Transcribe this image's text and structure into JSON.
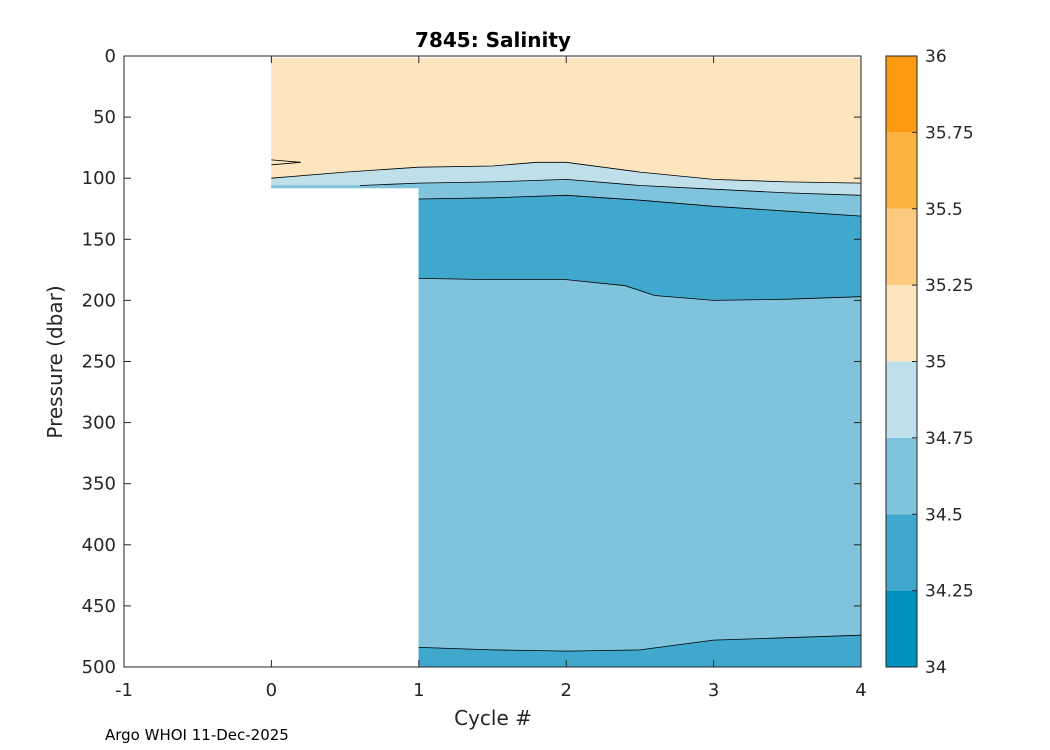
{
  "chart_data": {
    "type": "contour",
    "title": "7845:  Salinity",
    "xlabel": "Cycle #",
    "ylabel": "Pressure (dbar)",
    "xlim": [
      -1,
      4
    ],
    "ylim": [
      0,
      500
    ],
    "y_reversed": true,
    "x_ticks": [
      "-1",
      "0",
      "1",
      "2",
      "3",
      "4"
    ],
    "y_ticks": [
      "0",
      "50",
      "100",
      "150",
      "200",
      "250",
      "300",
      "350",
      "400",
      "450",
      "500"
    ],
    "colorbar": {
      "levels": [
        34,
        34.25,
        34.5,
        34.75,
        35,
        35.25,
        35.5,
        35.75,
        36
      ],
      "tick_labels": [
        "34",
        "34.25",
        "34.5",
        "34.75",
        "35",
        "35.25",
        "35.5",
        "35.75",
        "36"
      ],
      "colors": [
        "#0090bf",
        "#40a8cc",
        "#7fc3dd",
        "#bfe0eb",
        "#fde5bf",
        "#fccb7f",
        "#fcb240",
        "#fc9a11"
      ]
    },
    "bands": [
      {
        "range": [
          35,
          35.25
        ],
        "color": "#fde5bf",
        "top": [
          [
            0,
            2
          ],
          [
            4,
            2
          ]
        ],
        "bottom": [
          [
            0,
            100
          ],
          [
            0.5,
            95
          ],
          [
            1,
            91
          ],
          [
            1.5,
            90
          ],
          [
            1.8,
            87
          ],
          [
            2,
            87
          ],
          [
            2.5,
            95
          ],
          [
            3,
            101
          ],
          [
            3.5,
            103
          ],
          [
            4,
            104
          ]
        ]
      },
      {
        "range": [
          34.75,
          35
        ],
        "color": "#bfe0eb",
        "top": [
          [
            0,
            100
          ],
          [
            0.5,
            95
          ],
          [
            1,
            91
          ],
          [
            1.5,
            90
          ],
          [
            1.8,
            87
          ],
          [
            2,
            87
          ],
          [
            2.5,
            95
          ],
          [
            3,
            101
          ],
          [
            3.5,
            103
          ],
          [
            4,
            104
          ]
        ],
        "bottom": [
          [
            0,
            106
          ],
          [
            0.6,
            106
          ],
          [
            0.8,
            105
          ],
          [
            1,
            104
          ],
          [
            1.5,
            103
          ],
          [
            2,
            101
          ],
          [
            2.5,
            106
          ],
          [
            3,
            109
          ],
          [
            3.5,
            112
          ],
          [
            4,
            114
          ]
        ]
      },
      {
        "range": [
          34.5,
          34.75
        ],
        "color": "#7fc3dd",
        "top": [
          [
            0,
            106
          ],
          [
            0.6,
            106
          ],
          [
            0.8,
            105
          ],
          [
            1,
            104
          ],
          [
            1.5,
            103
          ],
          [
            2,
            101
          ],
          [
            2.5,
            106
          ],
          [
            3,
            109
          ],
          [
            3.5,
            112
          ],
          [
            4,
            114
          ]
        ],
        "bottom": [
          [
            0,
            108
          ],
          [
            1,
            108
          ],
          [
            1,
            117
          ],
          [
            1.5,
            116
          ],
          [
            2,
            114
          ],
          [
            2.5,
            118
          ],
          [
            3,
            123
          ],
          [
            3.5,
            127
          ],
          [
            4,
            131
          ]
        ]
      },
      {
        "range": [
          34.25,
          34.5
        ],
        "color": "#40a8cc",
        "top": [
          [
            1,
            117
          ],
          [
            1.5,
            116
          ],
          [
            2,
            114
          ],
          [
            2.5,
            118
          ],
          [
            3,
            123
          ],
          [
            3.5,
            127
          ],
          [
            4,
            131
          ]
        ],
        "bottom": [
          [
            1,
            182
          ],
          [
            1.5,
            183
          ],
          [
            2,
            183
          ],
          [
            2.4,
            188
          ],
          [
            2.6,
            196
          ],
          [
            3,
            200
          ],
          [
            3.5,
            199
          ],
          [
            4,
            197
          ]
        ]
      },
      {
        "range": [
          34.5,
          34.75
        ],
        "color": "#7fc3dd",
        "top": [
          [
            1,
            182
          ],
          [
            1.5,
            183
          ],
          [
            2,
            183
          ],
          [
            2.4,
            188
          ],
          [
            2.6,
            196
          ],
          [
            3,
            200
          ],
          [
            3.5,
            199
          ],
          [
            4,
            197
          ]
        ],
        "bottom": [
          [
            1,
            484
          ],
          [
            1.5,
            486
          ],
          [
            2,
            487
          ],
          [
            2.5,
            486
          ],
          [
            3,
            478
          ],
          [
            3.5,
            476
          ],
          [
            4,
            474
          ]
        ]
      },
      {
        "range": [
          34.25,
          34.5
        ],
        "color": "#40a8cc",
        "top": [
          [
            1,
            484
          ],
          [
            1.5,
            486
          ],
          [
            2,
            487
          ],
          [
            2.5,
            486
          ],
          [
            3,
            478
          ],
          [
            3.5,
            476
          ],
          [
            4,
            474
          ]
        ],
        "bottom": [
          [
            1,
            500
          ],
          [
            4,
            500
          ]
        ]
      }
    ],
    "contour_lines": [
      [
        [
          0,
          100
        ],
        [
          0.5,
          95
        ],
        [
          1,
          91
        ],
        [
          1.5,
          90
        ],
        [
          1.8,
          87
        ],
        [
          2,
          87
        ],
        [
          2.5,
          95
        ],
        [
          3,
          101
        ],
        [
          3.5,
          103
        ],
        [
          4,
          104
        ]
      ],
      [
        [
          0.6,
          106
        ],
        [
          0.8,
          105
        ],
        [
          1,
          104
        ],
        [
          1.5,
          103
        ],
        [
          2,
          101
        ],
        [
          2.5,
          106
        ],
        [
          3,
          109
        ],
        [
          3.5,
          112
        ],
        [
          4,
          114
        ]
      ],
      [
        [
          1,
          117
        ],
        [
          1.5,
          116
        ],
        [
          2,
          114
        ],
        [
          2.5,
          118
        ],
        [
          3,
          123
        ],
        [
          3.5,
          127
        ],
        [
          4,
          131
        ]
      ],
      [
        [
          1,
          182
        ],
        [
          1.5,
          183
        ],
        [
          2,
          183
        ],
        [
          2.4,
          188
        ],
        [
          2.6,
          196
        ],
        [
          3,
          200
        ],
        [
          3.5,
          199
        ],
        [
          4,
          197
        ]
      ],
      [
        [
          1,
          484
        ],
        [
          1.5,
          486
        ],
        [
          2,
          487
        ],
        [
          2.5,
          486
        ],
        [
          3,
          478
        ],
        [
          3.5,
          476
        ],
        [
          4,
          474
        ]
      ]
    ],
    "small_contour": [
      [
        0,
        85
      ],
      [
        0.2,
        87
      ],
      [
        0,
        89
      ]
    ],
    "data_coverage": [
      {
        "cycle_from": 0,
        "cycle_to": 1,
        "max_pressure": 108
      },
      {
        "cycle_from": 1,
        "cycle_to": 4,
        "max_pressure": 500
      }
    ]
  },
  "footer": "Argo WHOI 11-Dec-2025"
}
